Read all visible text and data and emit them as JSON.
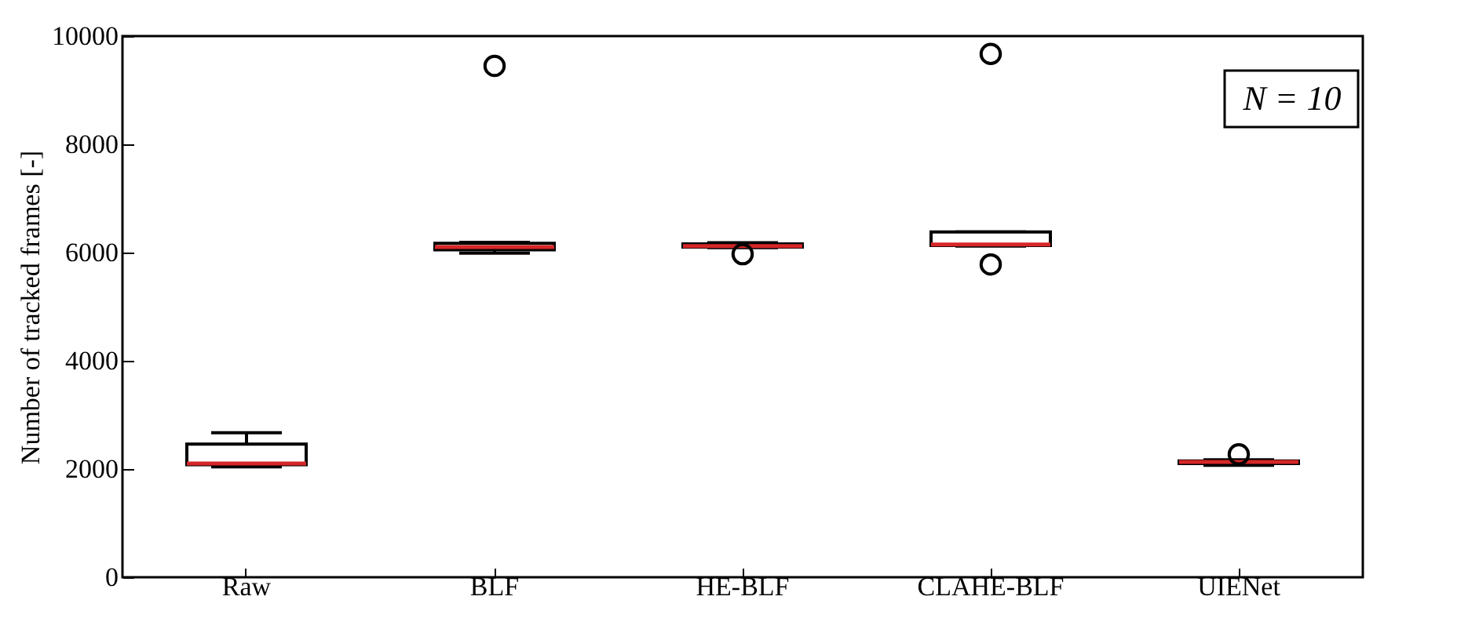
{
  "chart_data": {
    "type": "box",
    "ylabel": "Number of tracked frames [-]",
    "categories": [
      "Raw",
      "BLF",
      "HE-BLF",
      "CLAHE-BLF",
      "UIENet"
    ],
    "boxes": [
      {
        "low": 2040,
        "q1": 2080,
        "median": 2100,
        "q3": 2460,
        "high": 2670
      },
      {
        "low": 5990,
        "q1": 6050,
        "median": 6100,
        "q3": 6170,
        "high": 6190,
        "outliers": [
          9450
        ]
      },
      {
        "low": 6090,
        "q1": 6100,
        "median": 6120,
        "q3": 6160,
        "high": 6180,
        "outliers": [
          5970
        ]
      },
      {
        "low": 6120,
        "q1": 6130,
        "median": 6150,
        "q3": 6380,
        "high": 6380,
        "outliers": [
          9670,
          5780
        ]
      },
      {
        "low": 2070,
        "q1": 2100,
        "median": 2130,
        "q3": 2150,
        "high": 2170,
        "outliers": [
          2270
        ]
      }
    ],
    "ylim": [
      0,
      10000
    ],
    "yticks": [
      0,
      2000,
      4000,
      6000,
      8000,
      10000
    ],
    "annotations": [
      "N = 10"
    ]
  }
}
